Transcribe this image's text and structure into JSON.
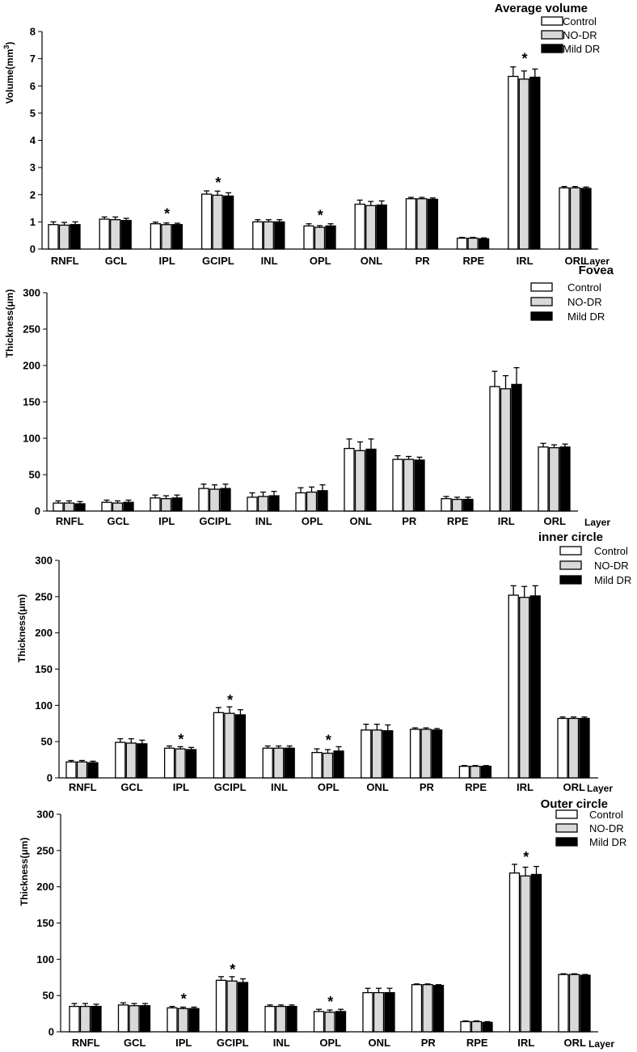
{
  "colors": {
    "Control": "#ffffff",
    "NO-DR": "#d9d9d9",
    "Mild DR": "#000000",
    "stroke": "#000000"
  },
  "chart_data": [
    {
      "type": "bar",
      "title": "Average volume",
      "ylabel": "Volume(mm",
      "ylabel_sup": "3",
      "ylabel_close": ")",
      "xlabel": "Layer",
      "ylim": [
        0,
        8
      ],
      "yticks": [
        "0",
        "1",
        "2",
        "3",
        "4",
        "5",
        "6",
        "7",
        "8"
      ],
      "categories": [
        "RNFL",
        "GCL",
        "IPL",
        "GCIPL",
        "INL",
        "OPL",
        "ONL",
        "PR",
        "RPE",
        "IRL",
        "ORL"
      ],
      "significant": [
        "IPL",
        "GCIPL",
        "OPL",
        "IRL"
      ],
      "significance_marker": "*",
      "series": [
        {
          "name": "Control",
          "values": [
            0.9,
            1.1,
            0.93,
            2.02,
            1.0,
            0.85,
            1.65,
            1.85,
            0.4,
            6.35,
            2.25
          ],
          "errors": [
            0.1,
            0.08,
            0.06,
            0.12,
            0.08,
            0.08,
            0.15,
            0.05,
            0.03,
            0.35,
            0.05
          ]
        },
        {
          "name": "NO-DR",
          "values": [
            0.88,
            1.08,
            0.9,
            1.98,
            1.0,
            0.8,
            1.6,
            1.85,
            0.4,
            6.25,
            2.25
          ],
          "errors": [
            0.1,
            0.1,
            0.06,
            0.15,
            0.08,
            0.06,
            0.15,
            0.05,
            0.03,
            0.3,
            0.05
          ]
        },
        {
          "name": "Mild DR",
          "values": [
            0.9,
            1.05,
            0.9,
            1.95,
            1.0,
            0.85,
            1.62,
            1.83,
            0.38,
            6.32,
            2.23
          ],
          "errors": [
            0.1,
            0.08,
            0.05,
            0.12,
            0.08,
            0.08,
            0.15,
            0.05,
            0.03,
            0.3,
            0.05
          ]
        }
      ],
      "legend": "top-right"
    },
    {
      "type": "bar",
      "title": "Fovea",
      "ylabel": "Thickness(μm)",
      "xlabel": "Layer",
      "ylim": [
        0,
        300
      ],
      "yticks": [
        "0",
        "50",
        "100",
        "150",
        "200",
        "250",
        "300"
      ],
      "categories": [
        "RNFL",
        "GCL",
        "IPL",
        "GCIPL",
        "INL",
        "OPL",
        "ONL",
        "PR",
        "RPE",
        "IRL",
        "ORL"
      ],
      "significant": [],
      "significance_marker": "*",
      "series": [
        {
          "name": "Control",
          "values": [
            11,
            12,
            18,
            31,
            19,
            25,
            86,
            71,
            17,
            171,
            88
          ],
          "errors": [
            3,
            3,
            4,
            6,
            6,
            7,
            13,
            5,
            3,
            21,
            5
          ]
        },
        {
          "name": "NO-DR",
          "values": [
            11,
            11,
            17,
            30,
            20,
            26,
            83,
            71,
            16,
            168,
            87
          ],
          "errors": [
            3,
            3,
            4,
            6,
            6,
            7,
            12,
            4,
            3,
            18,
            4
          ]
        },
        {
          "name": "Mild DR",
          "values": [
            10,
            12,
            18,
            31,
            21,
            28,
            85,
            70,
            16,
            174,
            88
          ],
          "errors": [
            3,
            3,
            4,
            6,
            6,
            8,
            14,
            4,
            3,
            23,
            4
          ]
        }
      ],
      "legend": "top-right"
    },
    {
      "type": "bar",
      "title": "inner circle",
      "ylabel": "Thickness(μm)",
      "xlabel": "Layer",
      "ylim": [
        0,
        300
      ],
      "yticks": [
        "0",
        "50",
        "100",
        "150",
        "200",
        "250",
        "300"
      ],
      "categories": [
        "RNFL",
        "GCL",
        "IPL",
        "GCIPL",
        "INL",
        "OPL",
        "ONL",
        "PR",
        "RPE",
        "IRL",
        "ORL"
      ],
      "significant": [
        "IPL",
        "GCIPL",
        "OPL"
      ],
      "significance_marker": "*",
      "series": [
        {
          "name": "Control",
          "values": [
            22,
            49,
            41,
            90,
            41,
            35,
            66,
            67,
            16,
            252,
            82
          ],
          "errors": [
            2,
            5,
            3,
            7,
            3,
            5,
            8,
            2,
            1,
            13,
            2
          ]
        },
        {
          "name": "NO-DR",
          "values": [
            22,
            48,
            40,
            89,
            41,
            34,
            66,
            67,
            16,
            249,
            82
          ],
          "errors": [
            2,
            6,
            3,
            9,
            3,
            5,
            8,
            2,
            1,
            15,
            2
          ]
        },
        {
          "name": "Mild DR",
          "values": [
            21,
            47,
            39,
            87,
            41,
            37,
            65,
            66,
            16,
            251,
            82
          ],
          "errors": [
            2,
            5,
            3,
            7,
            3,
            6,
            8,
            2,
            1,
            14,
            2
          ]
        }
      ],
      "legend": "top-right"
    },
    {
      "type": "bar",
      "title": "Outer circle",
      "ylabel": "Thickness(μm)",
      "xlabel": "Layer",
      "ylim": [
        0,
        300
      ],
      "yticks": [
        "0",
        "50",
        "100",
        "150",
        "200",
        "250",
        "300"
      ],
      "categories": [
        "RNFL",
        "GCL",
        "IPL",
        "GCIPL",
        "INL",
        "OPL",
        "ONL",
        "PR",
        "RPE",
        "IRL",
        "ORL"
      ],
      "significant": [
        "IPL",
        "GCIPL",
        "OPL",
        "IRL"
      ],
      "significance_marker": "*",
      "series": [
        {
          "name": "Control",
          "values": [
            35,
            37,
            33,
            71,
            35,
            28,
            54,
            65,
            14,
            219,
            79
          ],
          "errors": [
            4,
            3,
            2,
            5,
            2,
            3,
            6,
            1,
            1,
            12,
            1
          ]
        },
        {
          "name": "NO-DR",
          "values": [
            35,
            36,
            32,
            70,
            35,
            27,
            54,
            65,
            14,
            215,
            79
          ],
          "errors": [
            4,
            3,
            2,
            6,
            2,
            3,
            6,
            1,
            1,
            12,
            1
          ]
        },
        {
          "name": "Mild DR",
          "values": [
            35,
            36,
            32,
            68,
            35,
            28,
            54,
            64,
            13,
            217,
            78
          ],
          "errors": [
            3,
            3,
            2,
            5,
            2,
            3,
            6,
            1,
            1,
            11,
            1
          ]
        }
      ],
      "legend": "top-right"
    }
  ]
}
